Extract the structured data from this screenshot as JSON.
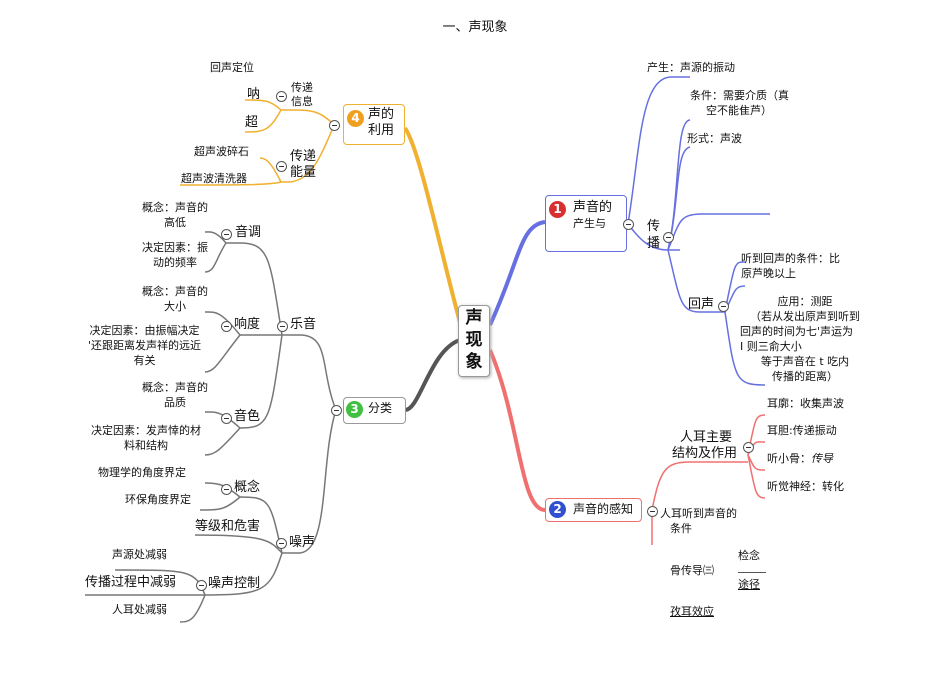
{
  "title": "一、声现象",
  "center": {
    "label": [
      "声",
      "现",
      "象"
    ]
  },
  "colors": {
    "b1": "#6670e0",
    "b2": "#f07070",
    "b3": "#555555",
    "b4": "#f0b030",
    "badge1": "#d83030",
    "badge2": "#3050d0",
    "badge3": "#40c040",
    "badge4": "#f0a020"
  },
  "branch4": {
    "number": "4",
    "label": [
      "声的",
      "利用"
    ],
    "info": {
      "label": [
        "传递",
        "信息"
      ],
      "items": [
        "回声定位",
        "呐",
        "超"
      ]
    },
    "energy": {
      "label": [
        "传递",
        "能量"
      ],
      "items": [
        "超声波碎石",
        "超声波清洗器"
      ]
    }
  },
  "branch1": {
    "number": "1",
    "label": [
      "声音的",
      "产生与"
    ],
    "produce": "产生：声源的振动",
    "spread": {
      "label": [
        "传",
        "播"
      ],
      "condition": [
        "条件：需要介质（真",
        "空不能隹芦）"
      ],
      "form": "形式：声波"
    },
    "echo": {
      "label": "回声",
      "condition": [
        "听到回声的条件：比",
        "原芦晚以上"
      ],
      "application": [
        "应用：测距",
        "（若从发出原声到听到",
        "回声的时间为七'声运为",
        "I 则三俞大小",
        "等于声音在 t 吃内",
        "传播的距离）"
      ]
    }
  },
  "branch2": {
    "number": "2",
    "label": "声音的感知",
    "ear": {
      "label": [
        "人耳主要",
        "结构及作用"
      ],
      "items": [
        {
          "a": "耳廓：收集声波"
        },
        {
          "a": "耳胆:传递振动"
        },
        {
          "a": "听小骨：",
          "b": "传导"
        },
        {
          "a": "听觉神经：转化"
        }
      ]
    },
    "hear_condition": [
      "人耳听到声音的",
      "条件"
    ],
    "bone": "骨传导㈢",
    "concept": "检念",
    "route": "途径",
    "binaural": "孜耳效应"
  },
  "branch3": {
    "number": "3",
    "label": "分类",
    "music": {
      "label": "乐音",
      "pitch": {
        "label": "音调",
        "concept": [
          "概念：声音的",
          "高低"
        ],
        "factor": [
          "决定因素：振",
          "动的频率"
        ]
      },
      "loudness": {
        "label": "响度",
        "concept": [
          "概念：声音的",
          "大小"
        ],
        "factor": [
          "决定因素：由振幅决定",
          "'还跟距离发声祥的远近",
          "有关"
        ]
      },
      "timbre": {
        "label": "音色",
        "concept": [
          "概念：声音的",
          "品质"
        ],
        "factor": [
          "决定因素：发声悻的材",
          "料和结构"
        ]
      }
    },
    "noise": {
      "label": "噪声",
      "concept": {
        "label": "概念",
        "items": [
          "物理学的角度界定",
          "环保角度界定"
        ]
      },
      "level": "等级和危害",
      "control": {
        "label": "噪声控制",
        "items": [
          "声源处减弱",
          "传播过程中减弱",
          "人耳处减弱"
        ]
      }
    }
  }
}
